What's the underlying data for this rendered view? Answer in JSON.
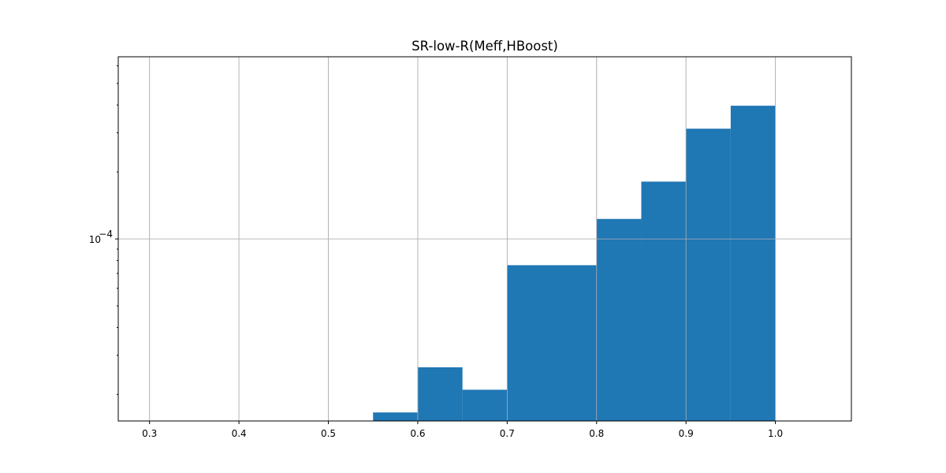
{
  "chart_data": {
    "type": "bar",
    "title": "SR-low-R(Meff,HBoost)",
    "xlabel": "",
    "ylabel": "",
    "y_scale": "log",
    "grid": true,
    "bar_color": "#1f77b4",
    "xlim": [
      0.265,
      1.085
    ],
    "ylim": [
      1.52e-05,
      0.000659
    ],
    "x_ticks": [
      0.3,
      0.4,
      0.5,
      0.6,
      0.7,
      0.8,
      0.9,
      1.0
    ],
    "x_tick_labels": [
      "0.3",
      "0.4",
      "0.5",
      "0.6",
      "0.7",
      "0.8",
      "0.9",
      "1.0"
    ],
    "y_major_tick": 0.0001,
    "y_major_tick_label_base": "10",
    "y_major_tick_label_exp": "−4",
    "y_minor_ticks": [
      2e-05,
      3e-05,
      4e-05,
      5e-05,
      6e-05,
      7e-05,
      8e-05,
      9e-05,
      0.0002,
      0.0003,
      0.0004,
      0.0005,
      0.0006
    ],
    "bins": [
      {
        "x0": 0.55,
        "x1": 0.6,
        "value": 1.66e-05
      },
      {
        "x0": 0.6,
        "x1": 0.65,
        "value": 2.65e-05
      },
      {
        "x0": 0.65,
        "x1": 0.7,
        "value": 2.1e-05
      },
      {
        "x0": 0.7,
        "x1": 0.8,
        "value": 7.62e-05
      },
      {
        "x0": 0.8,
        "x1": 0.85,
        "value": 0.000123
      },
      {
        "x0": 0.85,
        "x1": 0.9,
        "value": 0.000181
      },
      {
        "x0": 0.9,
        "x1": 0.95,
        "value": 0.000313
      },
      {
        "x0": 0.95,
        "x1": 1.0,
        "value": 0.000397
      }
    ]
  }
}
